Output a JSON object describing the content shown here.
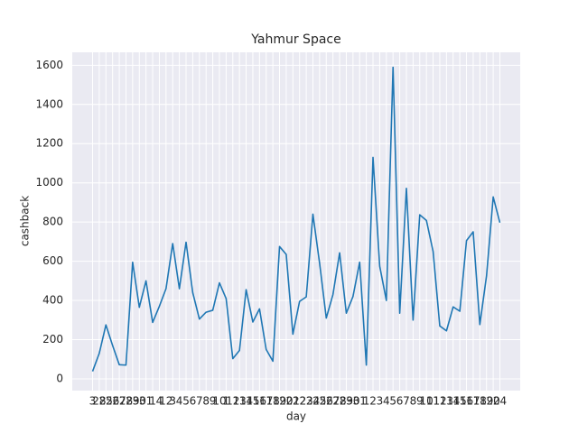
{
  "chart_data": {
    "type": "line",
    "title": "Yahmur Space",
    "xlabel": "day",
    "ylabel": "cashback",
    "categories": [
      "3",
      "28",
      "25",
      "26",
      "27",
      "28",
      "29",
      "30",
      "31",
      "1",
      "4",
      "12",
      "3",
      "4",
      "5",
      "6",
      "7",
      "8",
      "9",
      "10",
      "1",
      "12",
      "13",
      "14",
      "15",
      "16",
      "17",
      "18",
      "19",
      "20",
      "21",
      "22",
      "23",
      "24",
      "25",
      "26",
      "27",
      "28",
      "29",
      "30",
      "31",
      "1",
      "2",
      "3",
      "4",
      "5",
      "6",
      "7",
      "8",
      "9",
      "10",
      "11",
      "12",
      "13",
      "14",
      "15",
      "16",
      "17",
      "18",
      "19",
      "20",
      "24"
    ],
    "series": [
      {
        "name": "cashback",
        "color": "#1f77b4",
        "values": [
          38,
          130,
          275,
          170,
          72,
          70,
          595,
          365,
          500,
          288,
          370,
          460,
          690,
          460,
          697,
          440,
          305,
          340,
          350,
          490,
          410,
          103,
          145,
          455,
          290,
          357,
          150,
          90,
          675,
          635,
          228,
          395,
          418,
          840,
          590,
          310,
          430,
          643,
          335,
          420,
          595,
          70,
          1130,
          575,
          400,
          1590,
          335,
          972,
          300,
          837,
          808,
          650,
          270,
          245,
          367,
          345,
          705,
          750,
          277,
          525,
          928,
          797
        ]
      }
    ],
    "ylim": [
      -60,
      1666
    ],
    "yticks": [
      0,
      200,
      400,
      600,
      800,
      1000,
      1200,
      1400,
      1600
    ],
    "grid": true
  }
}
